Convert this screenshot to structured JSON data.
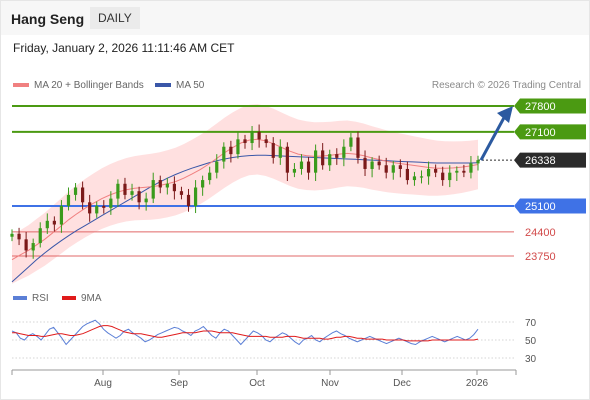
{
  "header": {
    "instrument": "Hang Seng",
    "period": "DAILY",
    "timestamp": "Friday, January 2, 2026 11:11:46 AM CET"
  },
  "legend": {
    "ma20_label": "MA 20 + Bollinger Bands",
    "ma50_label": "MA 50",
    "rsi_label": "RSI",
    "ma9_label": "9MA",
    "credit": "Research © 2026 Trading Central"
  },
  "colors": {
    "candle_up": "#3a9b1c",
    "candle_down": "#7b1a1a",
    "resistance": "#4b9a12",
    "support": "#3f72e6",
    "target_lines": "#e06868",
    "ma20": "#f08080",
    "ma50": "#3a57a8",
    "bollinger_fill": "#ffd6d6",
    "rsi_line": "#5b7fd6",
    "rsi_ma": "#e01b1b",
    "forecast_arrow": "#2c5aa0",
    "last_price_box": "#2b2b2b"
  },
  "chart_data": [
    {
      "type": "candlestick",
      "title": "Hang Seng",
      "x_ticks": [
        "Aug",
        "Sep",
        "Oct",
        "Nov",
        "Dec",
        "2026"
      ],
      "levels": [
        {
          "value": 27800,
          "label": "27800",
          "kind": "resistance"
        },
        {
          "value": 27100,
          "label": "27100",
          "kind": "resistance"
        },
        {
          "value": 26338,
          "label": "26338",
          "kind": "last_price"
        },
        {
          "value": 25100,
          "label": "25100",
          "kind": "support"
        },
        {
          "value": 24400,
          "label": "24400",
          "kind": "target"
        },
        {
          "value": 23750,
          "label": "23750",
          "kind": "target"
        }
      ],
      "y_range": [
        23100,
        28000
      ],
      "series": [
        {
          "name": "MA 20 + Bollinger Bands",
          "values": [
            23650,
            23780,
            23900,
            24050,
            24200,
            24380,
            24560,
            24740,
            24900,
            25050,
            25180,
            25300,
            25400,
            25480,
            25540,
            25580,
            25600,
            25620,
            25650,
            25700,
            25760,
            25850,
            25960,
            26080,
            26220,
            26380,
            26540,
            26680,
            26800,
            26880,
            26900,
            26860,
            26780,
            26680,
            26580,
            26500,
            26460,
            26440,
            26450,
            26470,
            26500,
            26520,
            26500,
            26460,
            26400,
            26350,
            26300,
            26260,
            26230,
            26200,
            26170,
            26140,
            26120,
            26120,
            26130,
            26150,
            26180,
            26220
          ]
        },
        {
          "name": "MA 50",
          "values": [
            23050,
            23250,
            23450,
            23650,
            23830,
            24000,
            24160,
            24310,
            24450,
            24580,
            24710,
            24840,
            24970,
            25100,
            25230,
            25360,
            25490,
            25620,
            25740,
            25850,
            25950,
            26040,
            26120,
            26190,
            26260,
            26320,
            26370,
            26410,
            26440,
            26460,
            26470,
            26470,
            26460,
            26450,
            26440,
            26430,
            26420,
            26410,
            26400,
            26390,
            26380,
            26370,
            26360,
            26350,
            26340,
            26330,
            26320,
            26310,
            26300,
            26290,
            26280,
            26270,
            26260,
            26260,
            26260,
            26260,
            26260,
            26270
          ]
        }
      ],
      "closes": [
        24350,
        24200,
        23900,
        24100,
        24500,
        24700,
        24600,
        25100,
        25400,
        25600,
        25200,
        24900,
        25100,
        25050,
        25300,
        25700,
        25400,
        25500,
        25200,
        25300,
        25800,
        25600,
        25700,
        25500,
        25400,
        25100,
        25600,
        25800,
        26000,
        26300,
        26700,
        26500,
        26900,
        26800,
        27100,
        26900,
        26800,
        26400,
        26700,
        26000,
        26100,
        26300,
        26000,
        26600,
        26200,
        26500,
        26400,
        26700,
        26950,
        26400,
        26100,
        26300,
        26200,
        26000,
        26200,
        26100,
        25800,
        25900,
        25900,
        26100,
        26000,
        25800,
        26000,
        26050,
        26000,
        26250,
        26338
      ]
    },
    {
      "type": "line",
      "title": "RSI",
      "y_ticks": [
        70,
        50,
        30
      ],
      "series": [
        {
          "name": "RSI",
          "values": [
            60,
            58,
            52,
            50,
            55,
            57,
            54,
            50,
            56,
            62,
            64,
            58,
            52,
            45,
            50,
            55,
            60,
            65,
            68,
            70,
            72,
            68,
            62,
            58,
            55,
            52,
            55,
            60,
            62,
            58,
            55,
            52,
            48,
            50,
            53,
            56,
            58,
            60,
            62,
            64,
            63,
            60,
            58,
            55,
            60,
            62,
            65,
            60,
            55,
            52,
            58,
            62,
            60,
            55,
            50,
            45,
            50,
            55,
            60,
            58,
            55,
            50,
            48,
            52,
            55,
            58,
            56,
            52,
            48,
            45,
            50,
            52,
            55,
            50,
            48,
            52,
            55,
            58,
            60,
            57,
            55,
            52,
            50,
            48,
            50,
            52,
            54,
            52,
            50,
            48,
            46,
            48,
            50,
            52,
            50,
            48,
            46,
            45,
            48,
            50,
            52,
            54,
            52,
            50,
            48,
            50,
            52,
            54,
            52,
            50,
            52,
            56,
            62
          ]
        },
        {
          "name": "9MA",
          "values": [
            58,
            58,
            57,
            56,
            55,
            55,
            55,
            54,
            54,
            55,
            56,
            57,
            57,
            56,
            55,
            55,
            56,
            57,
            59,
            61,
            63,
            65,
            66,
            66,
            65,
            63,
            61,
            59,
            58,
            57,
            57,
            57,
            56,
            55,
            54,
            53,
            53,
            54,
            55,
            56,
            57,
            58,
            58,
            58,
            58,
            59,
            60,
            60,
            60,
            59,
            58,
            58,
            58,
            58,
            57,
            56,
            55,
            54,
            54,
            54,
            54,
            54,
            53,
            53,
            53,
            53,
            54,
            54,
            54,
            53,
            52,
            52,
            52,
            52,
            52,
            51,
            51,
            52,
            53,
            53,
            54,
            54,
            53,
            52,
            52,
            51,
            51,
            51,
            51,
            51,
            50,
            50,
            50,
            50,
            50,
            49,
            49,
            49,
            49,
            49,
            49,
            50,
            50,
            50,
            50,
            50,
            50,
            50,
            50,
            50,
            50,
            50,
            51
          ]
        }
      ]
    }
  ]
}
